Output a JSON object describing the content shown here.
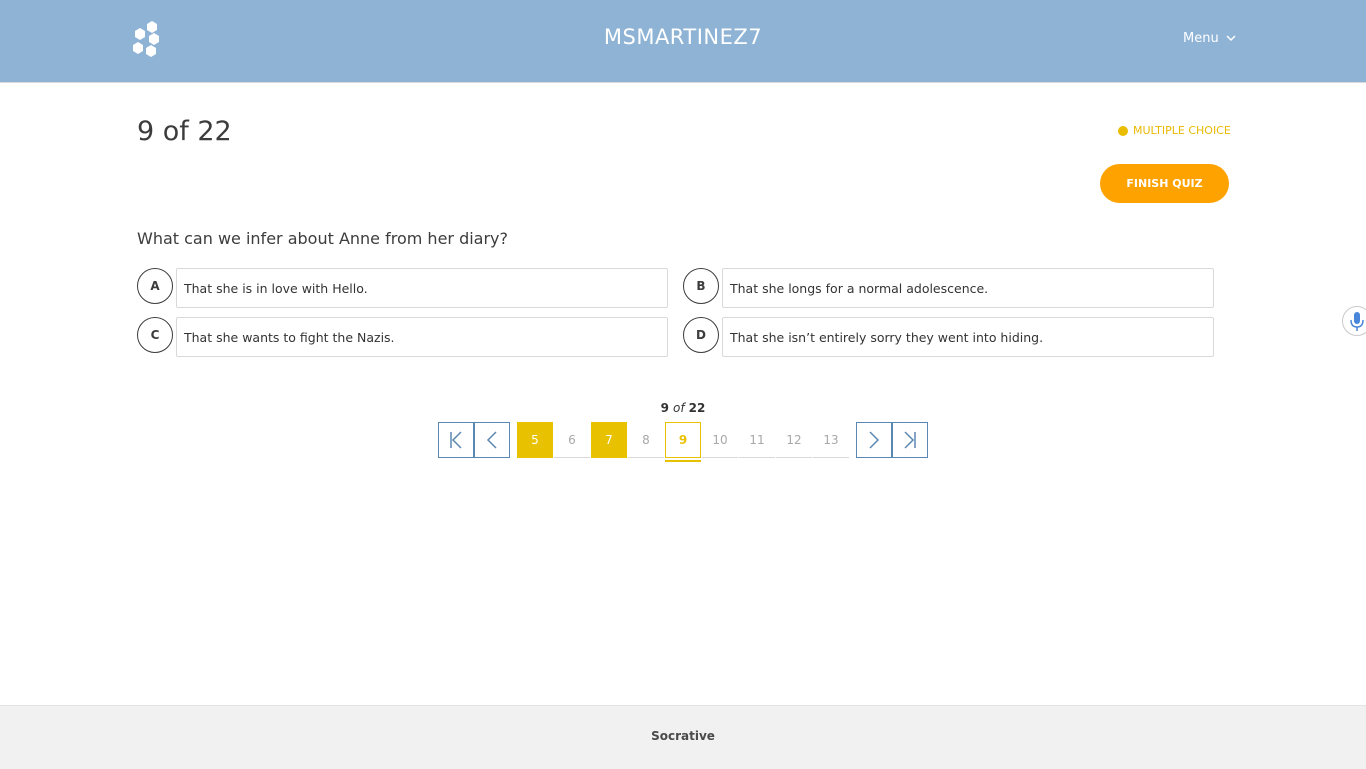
{
  "header": {
    "room_name": "MSMARTINEZ7",
    "menu_label": "Menu",
    "logo_icon": "socrative-hexagon-logo",
    "menu_icon": "chevron-down-icon"
  },
  "quiz": {
    "counter": "9 of 22",
    "question_type": "MULTIPLE CHOICE",
    "finish_label": "FINISH QUIZ",
    "question": "What can we infer about Anne from her diary?",
    "answers": [
      {
        "letter": "A",
        "text": "That she is in love with Hello."
      },
      {
        "letter": "B",
        "text": "That she longs for a normal adolescence."
      },
      {
        "letter": "C",
        "text": "That she wants to fight the Nazis."
      },
      {
        "letter": "D",
        "text": "That she isn’t entirely sorry they went into hiding."
      }
    ]
  },
  "pagination": {
    "current": "9",
    "of_word": "of",
    "total": "22",
    "pages": [
      {
        "label": "5",
        "state": "answered"
      },
      {
        "label": "6",
        "state": "unanswered"
      },
      {
        "label": "7",
        "state": "answered"
      },
      {
        "label": "8",
        "state": "unanswered"
      },
      {
        "label": "9",
        "state": "current"
      },
      {
        "label": "10",
        "state": "unanswered"
      },
      {
        "label": "11",
        "state": "unanswered"
      },
      {
        "label": "12",
        "state": "unanswered"
      },
      {
        "label": "13",
        "state": "unanswered"
      }
    ]
  },
  "footer": {
    "brand": "Socrative"
  },
  "colors": {
    "header_bg": "#8eb3d5",
    "accent_yellow": "#e8c200",
    "finish_orange": "#fea200",
    "nav_blue": "#5b87b3"
  }
}
